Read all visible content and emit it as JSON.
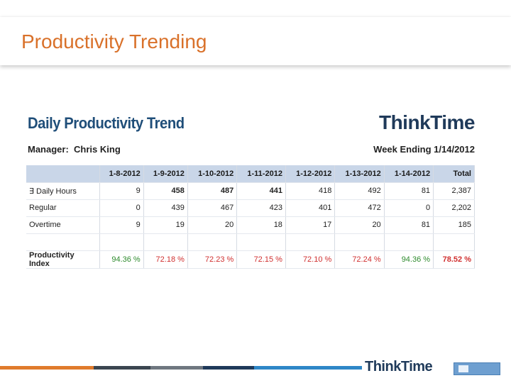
{
  "slide": {
    "title": "Productivity Trending"
  },
  "report": {
    "title": "Daily Productivity Trend",
    "brand_pre": "Thi",
    "brand_post": "nkTime",
    "manager_label": "Manager:",
    "manager_name": "Chris King",
    "week_label": "Week Ending 1/14/2012"
  },
  "table": {
    "headers": [
      "",
      "1-8-2012",
      "1-9-2012",
      "1-10-2012",
      "1-11-2012",
      "1-12-2012",
      "1-13-2012",
      "1-14-2012",
      "Total"
    ],
    "rows": [
      {
        "label": "∃ Daily Hours",
        "cells": [
          "9",
          "458",
          "487",
          "441",
          "418",
          "492",
          "81",
          "2,387"
        ]
      },
      {
        "label": "Regular",
        "cells": [
          "0",
          "439",
          "467",
          "423",
          "401",
          "472",
          "0",
          "2,202"
        ]
      },
      {
        "label": "Overtime",
        "cells": [
          "9",
          "19",
          "20",
          "18",
          "17",
          "20",
          "81",
          "185"
        ]
      }
    ],
    "index_row": {
      "label": "Productivity Index",
      "cells": [
        "94.36 %",
        "72.18 %",
        "72.23 %",
        "72.15 %",
        "72.10 %",
        "72.24 %",
        "94.36 %",
        "78.52 %"
      ]
    }
  },
  "footer": {
    "brand_pre": "Thi",
    "brand_post": "nkTime"
  },
  "colors": {
    "title": "#d9712a",
    "report_title": "#1f4e79",
    "header_bg": "#c9d6e8",
    "good": "#2e8b2e",
    "bad": "#d03030",
    "footer_segments": [
      "#e07b2c",
      "#3b4650",
      "#6f7780",
      "#1f3a5a",
      "#2e87c7"
    ]
  }
}
